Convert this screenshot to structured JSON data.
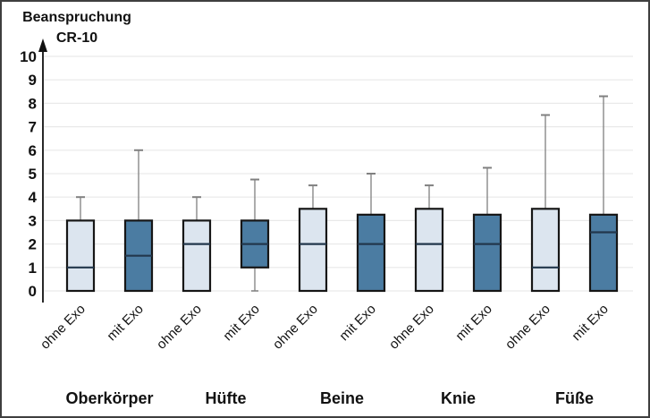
{
  "axis_title": {
    "line1": "Beanspruchung",
    "line2": "CR-10"
  },
  "chart_data": {
    "type": "boxplot",
    "title": "Beanspruchung CR-10",
    "ylabel": "Beanspruchung CR-10",
    "xlabel": "",
    "ylim": [
      0,
      10
    ],
    "y_ticks": [
      10,
      9,
      8,
      7,
      6,
      5,
      4,
      3,
      2,
      1,
      0
    ],
    "grid": true,
    "legend_position": "none",
    "groups": [
      "Oberkörper",
      "Hüfte",
      "Beine",
      "Knie",
      "Füße"
    ],
    "conditions": [
      "ohne Exo",
      "mit Exo"
    ],
    "series": [
      {
        "group": "Oberkörper",
        "condition": "ohne Exo",
        "min": 0,
        "q1": 0,
        "median": 1,
        "q3": 3,
        "max": 4
      },
      {
        "group": "Oberkörper",
        "condition": "mit Exo",
        "min": 0,
        "q1": 0,
        "median": 1.5,
        "q3": 3,
        "max": 6
      },
      {
        "group": "Hüfte",
        "condition": "ohne Exo",
        "min": 0,
        "q1": 0,
        "median": 2,
        "q3": 3,
        "max": 4
      },
      {
        "group": "Hüfte",
        "condition": "mit Exo",
        "min": 0,
        "q1": 1,
        "median": 2,
        "q3": 3,
        "max": 4.75
      },
      {
        "group": "Beine",
        "condition": "ohne Exo",
        "min": 0,
        "q1": 0,
        "median": 2,
        "q3": 3.5,
        "max": 4.5
      },
      {
        "group": "Beine",
        "condition": "mit Exo",
        "min": 0,
        "q1": 0,
        "median": 2,
        "q3": 3.25,
        "max": 5
      },
      {
        "group": "Knie",
        "condition": "ohne Exo",
        "min": 0,
        "q1": 0,
        "median": 2,
        "q3": 3.5,
        "max": 4.5
      },
      {
        "group": "Knie",
        "condition": "mit Exo",
        "min": 0,
        "q1": 0,
        "median": 2,
        "q3": 3.25,
        "max": 5.25
      },
      {
        "group": "Füße",
        "condition": "ohne Exo",
        "min": 0,
        "q1": 0,
        "median": 1,
        "q3": 3.5,
        "max": 7.5
      },
      {
        "group": "Füße",
        "condition": "mit Exo",
        "min": 0,
        "q1": 0,
        "median": 2.5,
        "q3": 3.25,
        "max": 8.3
      }
    ],
    "colors": {
      "ohne_exo_fill": "#dce5ef",
      "mit_exo_fill": "#4b7ca2",
      "box_border": "#161616",
      "median": "#22374c",
      "whisker": "#808080",
      "gridline": "#e9e9e9",
      "axis": "#111111",
      "text": "#111111",
      "frame_border": "#3f3f3f",
      "background": "#ffffff"
    }
  }
}
